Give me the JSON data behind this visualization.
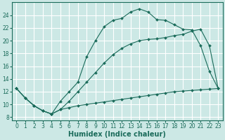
{
  "xlabel": "Humidex (Indice chaleur)",
  "bg_color": "#cce8e5",
  "grid_color": "#ffffff",
  "line_color": "#1a6b5a",
  "xlim": [
    -0.5,
    23.5
  ],
  "ylim": [
    7.5,
    26.0
  ],
  "xticks": [
    0,
    1,
    2,
    3,
    4,
    5,
    6,
    7,
    8,
    9,
    10,
    11,
    12,
    13,
    14,
    15,
    16,
    17,
    18,
    19,
    20,
    21,
    22,
    23
  ],
  "yticks": [
    8,
    10,
    12,
    14,
    16,
    18,
    20,
    22,
    24
  ],
  "series1_x": [
    0,
    1,
    2,
    3,
    4,
    5,
    6,
    7,
    8,
    9,
    10,
    11,
    12,
    13,
    14,
    15,
    16,
    17,
    18,
    19,
    20,
    21,
    22,
    23
  ],
  "series1_y": [
    12.5,
    11.0,
    9.8,
    9.0,
    8.5,
    9.2,
    9.5,
    9.8,
    10.0,
    10.2,
    10.4,
    10.6,
    10.8,
    11.0,
    11.2,
    11.4,
    11.6,
    11.8,
    12.0,
    12.1,
    12.2,
    12.3,
    12.4,
    12.5
  ],
  "series2_x": [
    0,
    1,
    2,
    3,
    4,
    5,
    6,
    7,
    8,
    9,
    10,
    11,
    12,
    13,
    14,
    15,
    16,
    17,
    18,
    19,
    20,
    21,
    22,
    23
  ],
  "series2_y": [
    12.5,
    11.0,
    9.8,
    9.0,
    8.5,
    10.5,
    12.0,
    13.5,
    17.5,
    20.0,
    22.2,
    23.2,
    23.5,
    24.5,
    25.0,
    24.5,
    23.3,
    23.2,
    22.5,
    21.8,
    21.7,
    19.2,
    15.2,
    12.5
  ],
  "series3_x": [
    0,
    1,
    2,
    3,
    4,
    5,
    6,
    7,
    8,
    9,
    10,
    11,
    12,
    13,
    14,
    15,
    16,
    17,
    18,
    19,
    20,
    21,
    22,
    23
  ],
  "series3_y": [
    12.5,
    11.0,
    9.8,
    9.0,
    8.5,
    9.2,
    10.5,
    12.0,
    13.5,
    15.0,
    16.5,
    17.8,
    18.8,
    19.5,
    20.0,
    20.2,
    20.3,
    20.5,
    20.8,
    21.0,
    21.5,
    21.8,
    19.2,
    12.5
  ],
  "xlabel_fontsize": 7,
  "tick_fontsize": 5.5
}
